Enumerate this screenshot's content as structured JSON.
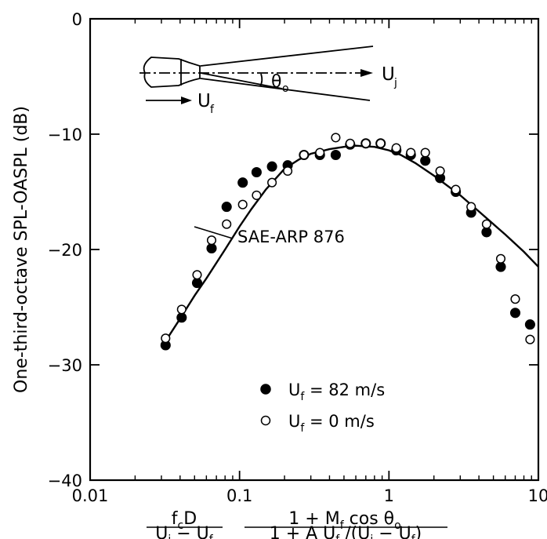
{
  "chart_data": {
    "type": "scatter",
    "title": "",
    "ylabel": "One-third-octave SPL-OASPL (dB)",
    "xlabel": {
      "factor1": {
        "numerator": "f_c D",
        "denominator": "U_j − U_f"
      },
      "factor2": {
        "numerator": "1 + M_f cos θ_o",
        "denominator": "1 + A U_f /(U_j − U_f)"
      }
    },
    "xscale": "log",
    "xlim": [
      0.01,
      10
    ],
    "ylim": [
      -40,
      0
    ],
    "xticks": [
      "0.01",
      "0.1",
      "1",
      "10"
    ],
    "yticks": [
      "0",
      "-10",
      "-20",
      "-30",
      "-40"
    ],
    "grid": false,
    "legend_position": "lower-center",
    "series": [
      {
        "name": "U_f = 82 m/s",
        "marker": "filled-circle",
        "x": [
          0.032,
          0.041,
          0.052,
          0.065,
          0.082,
          0.105,
          0.13,
          0.165,
          0.21,
          0.27,
          0.345,
          0.44,
          0.55,
          0.7,
          0.88,
          1.12,
          1.4,
          1.75,
          2.2,
          2.8,
          3.55,
          4.5,
          5.6,
          7.0,
          8.8
        ],
        "y": [
          -28.3,
          -25.9,
          -22.9,
          -19.9,
          -16.3,
          -14.2,
          -13.3,
          -12.8,
          -12.7,
          -11.8,
          -11.8,
          -11.8,
          -10.9,
          -10.8,
          -10.8,
          -11.4,
          -11.8,
          -12.3,
          -13.8,
          -15.0,
          -16.8,
          -18.5,
          -21.5,
          -25.5,
          -26.5
        ]
      },
      {
        "name": "U_f = 0 m/s",
        "marker": "open-circle",
        "x": [
          0.032,
          0.041,
          0.052,
          0.065,
          0.082,
          0.105,
          0.13,
          0.165,
          0.21,
          0.27,
          0.345,
          0.44,
          0.55,
          0.7,
          0.88,
          1.12,
          1.4,
          1.75,
          2.2,
          2.8,
          3.55,
          4.5,
          5.6,
          7.0,
          8.8
        ],
        "y": [
          -27.7,
          -25.2,
          -22.2,
          -19.2,
          -17.8,
          -16.1,
          -15.3,
          -14.2,
          -13.2,
          -11.8,
          -11.6,
          -10.3,
          -10.8,
          -10.8,
          -10.8,
          -11.2,
          -11.6,
          -11.6,
          -13.2,
          -14.8,
          -16.3,
          -17.8,
          -20.8,
          -24.3,
          -27.8
        ]
      },
      {
        "name": "SAE-ARP 876",
        "marker": "line",
        "x": [
          0.03,
          0.04,
          0.05,
          0.06,
          0.08,
          0.1,
          0.12,
          0.15,
          0.2,
          0.25,
          0.3,
          0.4,
          0.5,
          0.6,
          0.8,
          1.0,
          1.2,
          1.5,
          2.0,
          3.0,
          4.0,
          5.0,
          6.0,
          8.0,
          10.0
        ],
        "y": [
          -28.5,
          -26.0,
          -24.0,
          -22.5,
          -20.0,
          -18.0,
          -16.5,
          -14.8,
          -13.0,
          -12.2,
          -11.7,
          -11.3,
          -11.1,
          -11.0,
          -11.1,
          -11.4,
          -11.8,
          -12.5,
          -13.6,
          -15.3,
          -16.7,
          -17.8,
          -18.7,
          -20.2,
          -21.5
        ]
      }
    ],
    "annotations": {
      "curve_label": "SAE-ARP 876",
      "inset_velocity_jet": "U_j",
      "inset_velocity_flight": "U_f",
      "inset_angle": "θ_o"
    }
  }
}
